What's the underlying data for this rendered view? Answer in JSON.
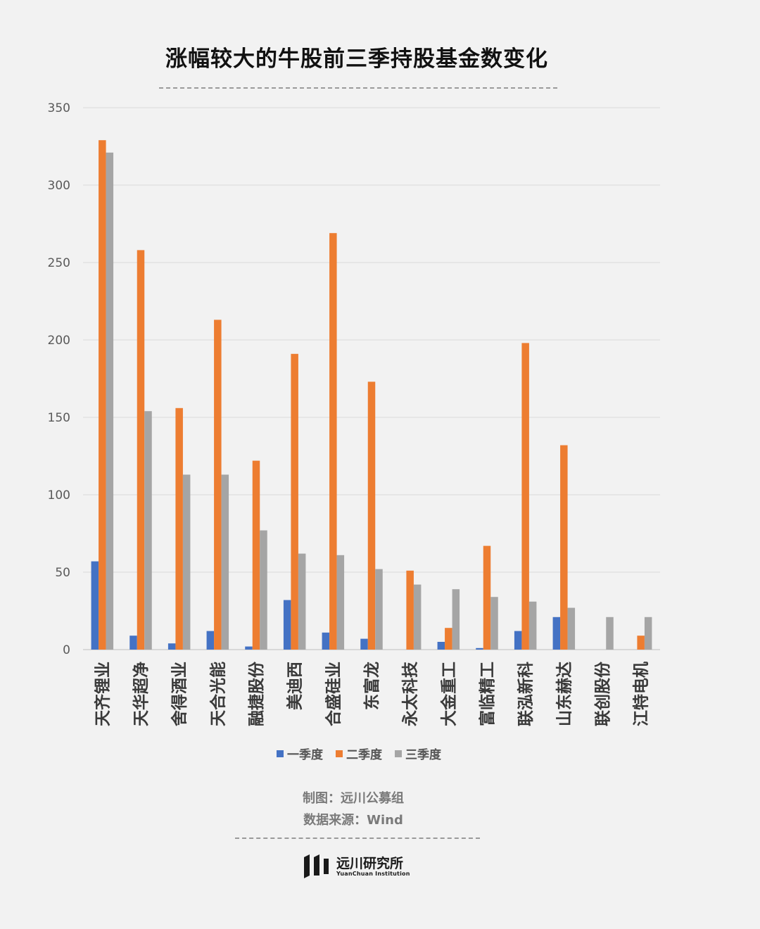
{
  "chart_data": {
    "type": "bar",
    "title": "涨幅较大的牛股前三季持股基金数变化",
    "categories": [
      "天齐锂业",
      "天华超净",
      "舍得酒业",
      "天合光能",
      "融捷股份",
      "美迪西",
      "合盛硅业",
      "东富龙",
      "永太科技",
      "大金重工",
      "富临精工",
      "联泓新科",
      "山东赫达",
      "联创股份",
      "江特电机"
    ],
    "series": [
      {
        "name": "一季度",
        "color": "#4472c4",
        "values": [
          57,
          9,
          4,
          12,
          2,
          32,
          11,
          7,
          0,
          5,
          1,
          12,
          21,
          0,
          0
        ]
      },
      {
        "name": "二季度",
        "color": "#ed7d31",
        "values": [
          329,
          258,
          156,
          213,
          122,
          191,
          269,
          173,
          51,
          14,
          67,
          198,
          132,
          0,
          9
        ]
      },
      {
        "name": "三季度",
        "color": "#a5a5a5",
        "values": [
          321,
          154,
          113,
          113,
          77,
          62,
          61,
          52,
          42,
          39,
          34,
          31,
          27,
          21,
          21
        ]
      }
    ],
    "yticks": [
      0,
      50,
      100,
      150,
      200,
      250,
      300,
      350
    ],
    "ylim": [
      0,
      350
    ],
    "grid": true,
    "legend_position": "bottom"
  },
  "footer": {
    "credit": "制图：远川公募组",
    "source": "数据来源：Wind",
    "brand_name": "远川研究所",
    "brand_sub": "YuanChuan Institution"
  }
}
